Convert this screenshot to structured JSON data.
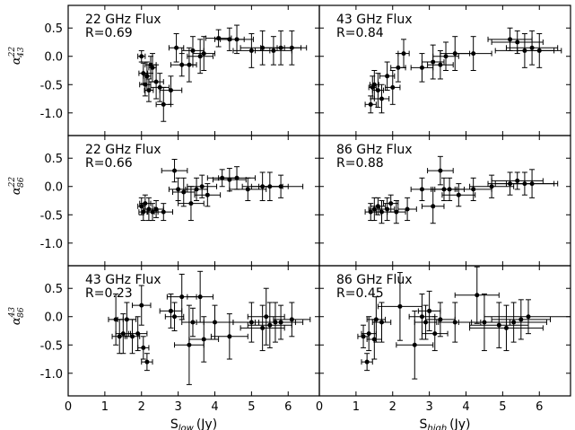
{
  "chart_data": {
    "type": "scatter",
    "grid": false,
    "layout": "3x2 shared axes",
    "xlim": [
      0,
      6.85
    ],
    "ylim": [
      -1.4,
      0.9
    ],
    "xticks": [
      "0",
      "1",
      "2",
      "3",
      "4",
      "5",
      "6"
    ],
    "yticks": [
      "0.5",
      "0.0",
      "-0.5",
      "-1.0"
    ],
    "xlabels": {
      "left_prefix": "S",
      "left_sub": "low",
      "left_unit": "(Jy)",
      "right_prefix": "S",
      "right_sub": "high",
      "right_unit": "(Jy)"
    },
    "row_labels": [
      {
        "base": "α",
        "sup": "22",
        "sub": "43"
      },
      {
        "base": "α",
        "sup": "22",
        "sub": "86"
      },
      {
        "base": "α",
        "sup": "43",
        "sub": "86"
      }
    ],
    "panels": [
      {
        "flux_label": "22 GHz Flux",
        "r_label": "R=0.69",
        "points": [
          {
            "x": 2.0,
            "y": 0.0,
            "xe": 0.1,
            "ye": 0.1
          },
          {
            "x": 2.05,
            "y": -0.3,
            "xe": 0.12,
            "ye": 0.18
          },
          {
            "x": 2.1,
            "y": -0.5,
            "xe": 0.15,
            "ye": 0.2
          },
          {
            "x": 2.15,
            "y": -0.35,
            "xe": 0.1,
            "ye": 0.25
          },
          {
            "x": 2.2,
            "y": -0.6,
            "xe": 0.12,
            "ye": 0.2
          },
          {
            "x": 2.25,
            "y": -0.15,
            "xe": 0.15,
            "ye": 0.15
          },
          {
            "x": 2.3,
            "y": -0.2,
            "xe": 0.1,
            "ye": 0.25
          },
          {
            "x": 2.4,
            "y": -0.45,
            "xe": 0.2,
            "ye": 0.3
          },
          {
            "x": 2.5,
            "y": -0.55,
            "xe": 0.25,
            "ye": 0.25
          },
          {
            "x": 2.6,
            "y": -0.85,
            "xe": 0.2,
            "ye": 0.3
          },
          {
            "x": 2.8,
            "y": -0.6,
            "xe": 0.3,
            "ye": 0.25
          },
          {
            "x": 2.95,
            "y": 0.15,
            "xe": 0.2,
            "ye": 0.25
          },
          {
            "x": 3.1,
            "y": -0.15,
            "xe": 0.3,
            "ye": 0.2
          },
          {
            "x": 3.3,
            "y": -0.15,
            "xe": 0.2,
            "ye": 0.3
          },
          {
            "x": 3.4,
            "y": 0.1,
            "xe": 0.3,
            "ye": 0.25
          },
          {
            "x": 3.6,
            "y": 0.0,
            "xe": 0.35,
            "ye": 0.3
          },
          {
            "x": 3.7,
            "y": 0.05,
            "xe": 0.3,
            "ye": 0.3
          },
          {
            "x": 4.1,
            "y": 0.32,
            "xe": 0.35,
            "ye": 0.15
          },
          {
            "x": 4.4,
            "y": 0.3,
            "xe": 0.4,
            "ye": 0.2
          },
          {
            "x": 4.6,
            "y": 0.3,
            "xe": 0.45,
            "ye": 0.25
          },
          {
            "x": 5.0,
            "y": 0.1,
            "xe": 0.5,
            "ye": 0.3
          },
          {
            "x": 5.3,
            "y": 0.15,
            "xe": 0.6,
            "ye": 0.3
          },
          {
            "x": 5.6,
            "y": 0.1,
            "xe": 0.5,
            "ye": 0.25
          },
          {
            "x": 5.8,
            "y": 0.15,
            "xe": 0.55,
            "ye": 0.3
          },
          {
            "x": 6.1,
            "y": 0.15,
            "xe": 0.4,
            "ye": 0.3
          }
        ]
      },
      {
        "flux_label": "43 GHz Flux",
        "r_label": "R=0.84",
        "points": [
          {
            "x": 1.4,
            "y": -0.85,
            "xe": 0.15,
            "ye": 0.15
          },
          {
            "x": 1.45,
            "y": -0.55,
            "xe": 0.1,
            "ye": 0.2
          },
          {
            "x": 1.5,
            "y": -0.5,
            "xe": 0.12,
            "ye": 0.25
          },
          {
            "x": 1.6,
            "y": -0.6,
            "xe": 0.15,
            "ye": 0.3
          },
          {
            "x": 1.7,
            "y": -0.75,
            "xe": 0.2,
            "ye": 0.25
          },
          {
            "x": 1.85,
            "y": -0.35,
            "xe": 0.2,
            "ye": 0.25
          },
          {
            "x": 2.0,
            "y": -0.55,
            "xe": 0.2,
            "ye": 0.3
          },
          {
            "x": 2.15,
            "y": -0.2,
            "xe": 0.2,
            "ye": 0.25
          },
          {
            "x": 2.3,
            "y": 0.05,
            "xe": 0.15,
            "ye": 0.25
          },
          {
            "x": 2.8,
            "y": -0.2,
            "xe": 0.3,
            "ye": 0.25
          },
          {
            "x": 3.1,
            "y": -0.1,
            "xe": 0.3,
            "ye": 0.3
          },
          {
            "x": 3.3,
            "y": -0.15,
            "xe": 0.35,
            "ye": 0.25
          },
          {
            "x": 3.45,
            "y": 0.0,
            "xe": 0.35,
            "ye": 0.25
          },
          {
            "x": 3.7,
            "y": 0.05,
            "xe": 0.4,
            "ye": 0.3
          },
          {
            "x": 4.2,
            "y": 0.05,
            "xe": 0.5,
            "ye": 0.3
          },
          {
            "x": 5.2,
            "y": 0.3,
            "xe": 0.6,
            "ye": 0.2
          },
          {
            "x": 5.4,
            "y": 0.25,
            "xe": 0.7,
            "ye": 0.2
          },
          {
            "x": 5.6,
            "y": 0.1,
            "xe": 0.8,
            "ye": 0.3
          },
          {
            "x": 5.8,
            "y": 0.15,
            "xe": 0.7,
            "ye": 0.3
          },
          {
            "x": 6.0,
            "y": 0.1,
            "xe": 0.6,
            "ye": 0.3
          }
        ]
      },
      {
        "flux_label": "22 GHz Flux",
        "r_label": "R=0.66",
        "points": [
          {
            "x": 2.0,
            "y": -0.35,
            "xe": 0.1,
            "ye": 0.15
          },
          {
            "x": 2.05,
            "y": -0.45,
            "xe": 0.12,
            "ye": 0.15
          },
          {
            "x": 2.1,
            "y": -0.3,
            "xe": 0.15,
            "ye": 0.15
          },
          {
            "x": 2.2,
            "y": -0.4,
            "xe": 0.15,
            "ye": 0.2
          },
          {
            "x": 2.3,
            "y": -0.45,
            "xe": 0.15,
            "ye": 0.15
          },
          {
            "x": 2.4,
            "y": -0.4,
            "xe": 0.2,
            "ye": 0.15
          },
          {
            "x": 2.6,
            "y": -0.45,
            "xe": 0.25,
            "ye": 0.15
          },
          {
            "x": 2.9,
            "y": 0.28,
            "xe": 0.35,
            "ye": 0.2
          },
          {
            "x": 3.0,
            "y": -0.05,
            "xe": 0.25,
            "ye": 0.2
          },
          {
            "x": 3.15,
            "y": -0.1,
            "xe": 0.3,
            "ye": 0.25
          },
          {
            "x": 3.35,
            "y": -0.3,
            "xe": 0.35,
            "ye": 0.3
          },
          {
            "x": 3.5,
            "y": -0.05,
            "xe": 0.3,
            "ye": 0.2
          },
          {
            "x": 3.65,
            "y": 0.0,
            "xe": 0.4,
            "ye": 0.2
          },
          {
            "x": 3.8,
            "y": -0.15,
            "xe": 0.35,
            "ye": 0.2
          },
          {
            "x": 4.2,
            "y": 0.15,
            "xe": 0.4,
            "ye": 0.15
          },
          {
            "x": 4.4,
            "y": 0.12,
            "xe": 0.45,
            "ye": 0.2
          },
          {
            "x": 4.6,
            "y": 0.15,
            "xe": 0.5,
            "ye": 0.2
          },
          {
            "x": 4.9,
            "y": -0.05,
            "xe": 0.5,
            "ye": 0.2
          },
          {
            "x": 5.3,
            "y": 0.0,
            "xe": 0.55,
            "ye": 0.25
          },
          {
            "x": 5.5,
            "y": 0.0,
            "xe": 0.5,
            "ye": 0.25
          },
          {
            "x": 5.8,
            "y": 0.0,
            "xe": 0.6,
            "ye": 0.2
          }
        ]
      },
      {
        "flux_label": "86 GHz Flux",
        "r_label": "R=0.88",
        "points": [
          {
            "x": 1.4,
            "y": -0.45,
            "xe": 0.15,
            "ye": 0.15
          },
          {
            "x": 1.5,
            "y": -0.4,
            "xe": 0.15,
            "ye": 0.2
          },
          {
            "x": 1.6,
            "y": -0.35,
            "xe": 0.2,
            "ye": 0.15
          },
          {
            "x": 1.7,
            "y": -0.45,
            "xe": 0.15,
            "ye": 0.2
          },
          {
            "x": 1.85,
            "y": -0.4,
            "xe": 0.2,
            "ye": 0.2
          },
          {
            "x": 1.95,
            "y": -0.3,
            "xe": 0.2,
            "ye": 0.15
          },
          {
            "x": 2.1,
            "y": -0.45,
            "xe": 0.25,
            "ye": 0.2
          },
          {
            "x": 2.4,
            "y": -0.4,
            "xe": 0.25,
            "ye": 0.2
          },
          {
            "x": 2.8,
            "y": -0.05,
            "xe": 0.3,
            "ye": 0.2
          },
          {
            "x": 3.1,
            "y": -0.35,
            "xe": 0.3,
            "ye": 0.3
          },
          {
            "x": 3.3,
            "y": 0.28,
            "xe": 0.35,
            "ye": 0.25
          },
          {
            "x": 3.4,
            "y": -0.05,
            "xe": 0.35,
            "ye": 0.2
          },
          {
            "x": 3.55,
            "y": -0.05,
            "xe": 0.4,
            "ye": 0.2
          },
          {
            "x": 3.8,
            "y": -0.15,
            "xe": 0.45,
            "ye": 0.2
          },
          {
            "x": 4.2,
            "y": -0.05,
            "xe": 0.5,
            "ye": 0.2
          },
          {
            "x": 4.7,
            "y": 0.0,
            "xe": 0.6,
            "ye": 0.2
          },
          {
            "x": 5.2,
            "y": 0.05,
            "xe": 0.6,
            "ye": 0.2
          },
          {
            "x": 5.4,
            "y": 0.1,
            "xe": 0.7,
            "ye": 0.15
          },
          {
            "x": 5.6,
            "y": 0.05,
            "xe": 0.8,
            "ye": 0.2
          },
          {
            "x": 5.8,
            "y": 0.05,
            "xe": 0.7,
            "ye": 0.25
          }
        ]
      },
      {
        "flux_label": "43 GHz Flux",
        "r_label": "R=0.23",
        "points": [
          {
            "x": 1.3,
            "y": -0.05,
            "xe": 0.2,
            "ye": 0.45
          },
          {
            "x": 1.4,
            "y": -0.35,
            "xe": 0.2,
            "ye": 0.3
          },
          {
            "x": 1.5,
            "y": -0.3,
            "xe": 0.2,
            "ye": 0.35
          },
          {
            "x": 1.6,
            "y": -0.05,
            "xe": 0.25,
            "ye": 0.3
          },
          {
            "x": 1.75,
            "y": -0.35,
            "xe": 0.2,
            "ye": 0.3
          },
          {
            "x": 1.9,
            "y": -0.3,
            "xe": 0.25,
            "ye": 0.3
          },
          {
            "x": 2.0,
            "y": 0.2,
            "xe": 0.25,
            "ye": 0.35
          },
          {
            "x": 2.05,
            "y": -0.55,
            "xe": 0.15,
            "ye": 0.2
          },
          {
            "x": 2.15,
            "y": -0.8,
            "xe": 0.15,
            "ye": 0.15
          },
          {
            "x": 2.8,
            "y": 0.1,
            "xe": 0.3,
            "ye": 0.3
          },
          {
            "x": 2.9,
            "y": 0.0,
            "xe": 0.25,
            "ye": 0.25
          },
          {
            "x": 3.1,
            "y": 0.35,
            "xe": 0.4,
            "ye": 0.4
          },
          {
            "x": 3.3,
            "y": -0.5,
            "xe": 0.4,
            "ye": 0.7
          },
          {
            "x": 3.4,
            "y": -0.1,
            "xe": 0.3,
            "ye": 0.25
          },
          {
            "x": 3.6,
            "y": 0.35,
            "xe": 0.35,
            "ye": 0.45
          },
          {
            "x": 3.7,
            "y": -0.4,
            "xe": 0.4,
            "ye": 0.4
          },
          {
            "x": 4.0,
            "y": -0.1,
            "xe": 0.5,
            "ye": 0.3
          },
          {
            "x": 4.4,
            "y": -0.35,
            "xe": 0.5,
            "ye": 0.4
          },
          {
            "x": 5.0,
            "y": -0.1,
            "xe": 0.5,
            "ye": 0.35
          },
          {
            "x": 5.3,
            "y": -0.2,
            "xe": 0.6,
            "ye": 0.4
          },
          {
            "x": 5.4,
            "y": 0.0,
            "xe": 0.5,
            "ye": 0.5
          },
          {
            "x": 5.5,
            "y": -0.15,
            "xe": 0.6,
            "ye": 0.4
          },
          {
            "x": 5.65,
            "y": -0.1,
            "xe": 0.55,
            "ye": 0.35
          },
          {
            "x": 5.8,
            "y": -0.1,
            "xe": 0.6,
            "ye": 0.3
          },
          {
            "x": 6.1,
            "y": -0.05,
            "xe": 0.5,
            "ye": 0.3
          }
        ]
      },
      {
        "flux_label": "86 GHz Flux",
        "r_label": "R=0.45",
        "points": [
          {
            "x": 1.2,
            "y": -0.35,
            "xe": 0.15,
            "ye": 0.2
          },
          {
            "x": 1.3,
            "y": -0.8,
            "xe": 0.15,
            "ye": 0.15
          },
          {
            "x": 1.35,
            "y": -0.3,
            "xe": 0.2,
            "ye": 0.3
          },
          {
            "x": 1.5,
            "y": -0.4,
            "xe": 0.2,
            "ye": 0.35
          },
          {
            "x": 1.55,
            "y": -0.05,
            "xe": 0.25,
            "ye": 0.4
          },
          {
            "x": 1.7,
            "y": -0.1,
            "xe": 0.25,
            "ye": 0.35
          },
          {
            "x": 2.2,
            "y": 0.18,
            "xe": 0.6,
            "ye": 0.6
          },
          {
            "x": 2.6,
            "y": -0.5,
            "xe": 0.5,
            "ye": 0.6
          },
          {
            "x": 2.8,
            "y": 0.0,
            "xe": 0.35,
            "ye": 0.4
          },
          {
            "x": 2.9,
            "y": -0.1,
            "xe": 0.3,
            "ye": 0.3
          },
          {
            "x": 3.0,
            "y": 0.1,
            "xe": 0.3,
            "ye": 0.35
          },
          {
            "x": 3.15,
            "y": -0.3,
            "xe": 0.35,
            "ye": 0.3
          },
          {
            "x": 3.3,
            "y": -0.05,
            "xe": 0.4,
            "ye": 0.3
          },
          {
            "x": 3.7,
            "y": -0.1,
            "xe": 0.45,
            "ye": 0.35
          },
          {
            "x": 4.3,
            "y": 0.38,
            "xe": 0.6,
            "ye": 0.5
          },
          {
            "x": 4.5,
            "y": -0.1,
            "xe": 0.7,
            "ye": 0.5
          },
          {
            "x": 4.9,
            "y": -0.15,
            "xe": 0.8,
            "ye": 0.4
          },
          {
            "x": 5.1,
            "y": -0.2,
            "xe": 1.0,
            "ye": 0.4
          },
          {
            "x": 5.3,
            "y": -0.1,
            "xe": 0.9,
            "ye": 0.35
          },
          {
            "x": 5.5,
            "y": -0.05,
            "xe": 0.8,
            "ye": 0.35
          },
          {
            "x": 5.7,
            "y": 0.0,
            "xe": 1.2,
            "ye": 0.3
          }
        ]
      }
    ]
  }
}
